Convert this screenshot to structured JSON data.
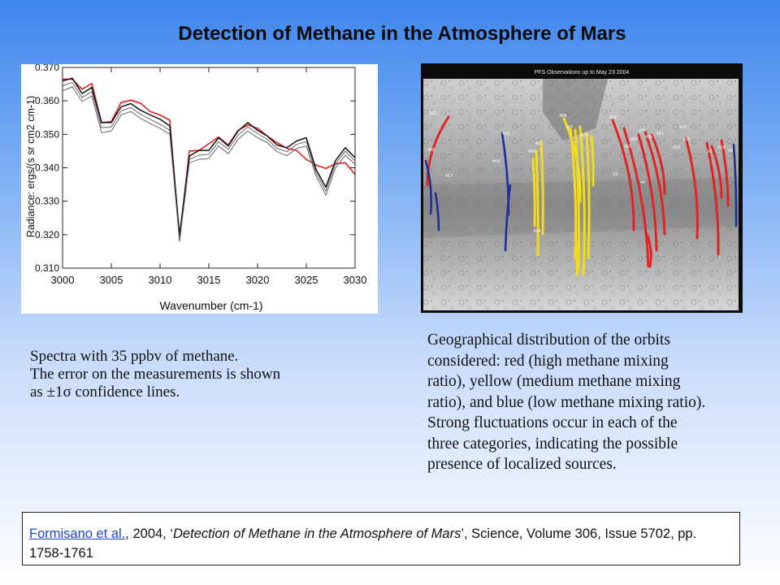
{
  "slide": {
    "title": "Detection of Methane in the Atmosphere of Mars"
  },
  "spectrum_chart": {
    "colors": {
      "model": "#e02020",
      "measured": "#111111",
      "error": "#666666",
      "frame": "#222222"
    }
  },
  "chart_data": {
    "type": "line",
    "title": "",
    "xlabel": "Wavenumber (cm-1)",
    "ylabel": "Radiance: ergs/(s sr cm2 cm-1)",
    "xlim": [
      3000,
      3030
    ],
    "ylim": [
      0.31,
      0.37
    ],
    "x_ticks": [
      "3000",
      "3005",
      "3010",
      "3015",
      "3020",
      "3025",
      "3030"
    ],
    "y_ticks": [
      "0.310",
      "0.320",
      "0.330",
      "0.340",
      "0.350",
      "0.360",
      "0.370"
    ],
    "grid": false,
    "legend": "none",
    "x": [
      3000,
      3001,
      3002,
      3003,
      3004,
      3005,
      3006,
      3007,
      3008,
      3009,
      3010,
      3011,
      3012,
      3013,
      3014,
      3015,
      3016,
      3017,
      3018,
      3019,
      3020,
      3021,
      3022,
      3023,
      3024,
      3025,
      3026,
      3027,
      3028,
      3029,
      3030
    ],
    "series": [
      {
        "values": [
          0.3665,
          0.3665,
          0.3635,
          0.3652,
          0.3535,
          0.3538,
          0.3595,
          0.3602,
          0.3593,
          0.3568,
          0.3558,
          0.3542,
          0.3185,
          0.345,
          0.3452,
          0.3472,
          0.3492,
          0.3468,
          0.3512,
          0.3528,
          0.3518,
          0.3495,
          0.3475,
          0.3458,
          0.3452,
          0.3425,
          0.3408,
          0.3398,
          0.3412,
          0.3415,
          0.338
        ]
      },
      {
        "values": [
          0.3645,
          0.3655,
          0.361,
          0.3628,
          0.352,
          0.3522,
          0.357,
          0.358,
          0.356,
          0.3545,
          0.353,
          0.3512,
          0.319,
          0.3425,
          0.3438,
          0.344,
          0.3478,
          0.3455,
          0.3498,
          0.3522,
          0.3502,
          0.3485,
          0.3458,
          0.3448,
          0.347,
          0.3478,
          0.3385,
          0.333,
          0.3412,
          0.345,
          0.342
        ]
      },
      {
        "values": [
          0.366,
          0.3668,
          0.3622,
          0.364,
          0.3535,
          0.3535,
          0.3582,
          0.3592,
          0.3572,
          0.3558,
          0.3545,
          0.3525,
          0.3198,
          0.3435,
          0.3452,
          0.3452,
          0.349,
          0.3465,
          0.351,
          0.3535,
          0.3512,
          0.3495,
          0.3468,
          0.346,
          0.348,
          0.349,
          0.3395,
          0.3342,
          0.3422,
          0.346,
          0.343
        ]
      },
      {
        "values": [
          0.363,
          0.3642,
          0.3598,
          0.3615,
          0.3505,
          0.351,
          0.3558,
          0.3568,
          0.3548,
          0.3532,
          0.3518,
          0.35,
          0.318,
          0.3415,
          0.3425,
          0.3428,
          0.3465,
          0.3442,
          0.3485,
          0.351,
          0.349,
          0.3475,
          0.3448,
          0.3436,
          0.3458,
          0.3465,
          0.3375,
          0.3318,
          0.34,
          0.3438,
          0.341
        ]
      }
    ]
  },
  "map_image": {
    "title": "PFS Observations up to May 23 2004",
    "colors": {
      "high": "#e02424",
      "medium": "#f2dc1c",
      "low": "#1f2f9a"
    },
    "orbit_labels": [
      "202",
      "408",
      "417",
      "404",
      "430",
      "420",
      "405",
      "401",
      "394",
      "367",
      "400",
      "403",
      "410",
      "412",
      "422",
      "423",
      "411",
      "425",
      "418",
      "430",
      "436",
      "32",
      "34",
      "44",
      "33"
    ]
  },
  "captions": {
    "left": [
      "Spectra with 35 ppbv of methane.",
      "The error on the measurements is shown",
      "as ±1σ confidence lines."
    ],
    "right": "Geographical distribution of the orbits\nconsidered: red (high methane mixing\nratio), yellow (medium methane mixing\nratio), and blue (low methane mixing ratio).\nStrong fluctuations occur in each of the\nthree categories, indicating the possible\npresence of localized sources."
  },
  "citation": {
    "link_text": "Formisano et al.",
    "after_link": ", 2004, ‘",
    "article_title": "Detection of Methane in the Atmosphere of Mars",
    "rest": "’, Science, Volume 306, Issue 5702, pp. 1758-1761"
  }
}
